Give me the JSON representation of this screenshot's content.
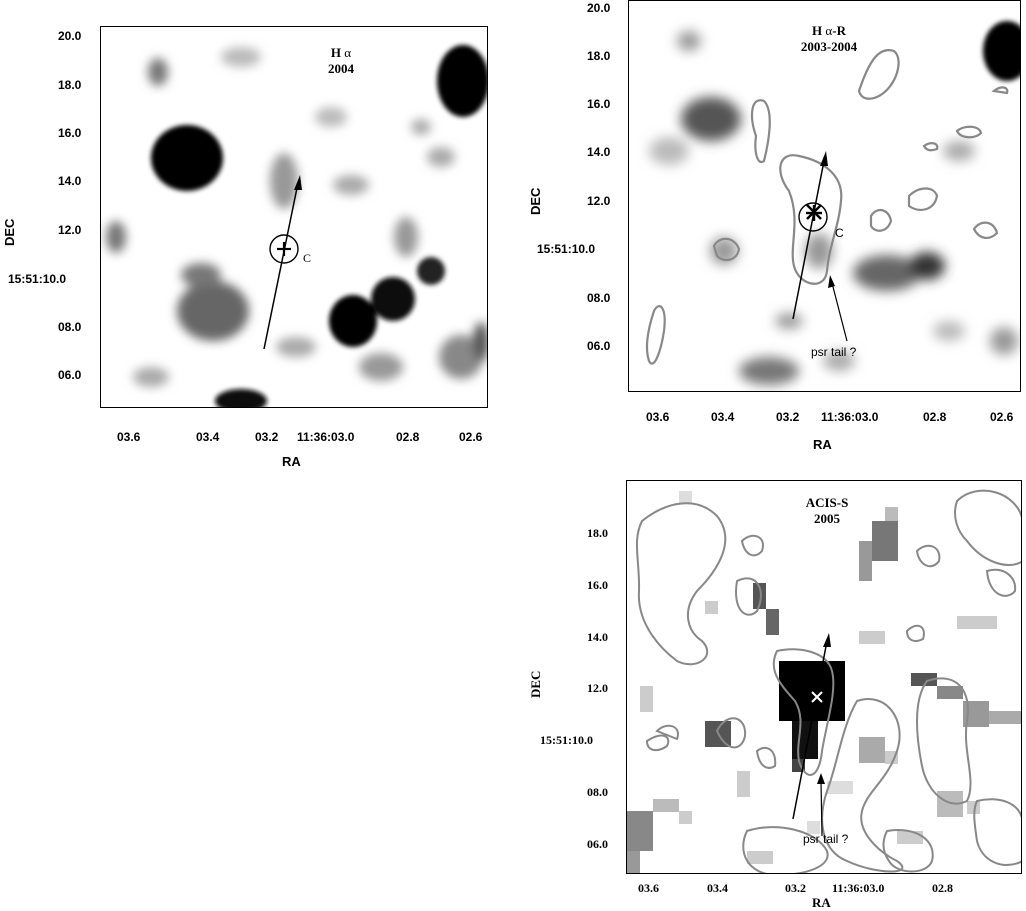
{
  "panels": {
    "halpha": {
      "title_line1": "H",
      "title_alpha": "α",
      "title_line2": "2004",
      "xlabel": "RA",
      "ylabel": "DEC",
      "yticks": [
        "20.0",
        "18.0",
        "16.0",
        "14.0",
        "12.0",
        "15:51:10.0",
        "08.0",
        "06.0"
      ],
      "xticks": [
        "03.6",
        "03.4",
        "03.2",
        "11:36:03.0",
        "02.8",
        "02.6"
      ],
      "source_label": "C"
    },
    "diff": {
      "title_line1": "H",
      "title_alpha": "α",
      "title_suffix": "-R",
      "title_line2": "2003-2004",
      "xlabel": "RA",
      "ylabel": "DEC",
      "yticks": [
        "20.0",
        "18.0",
        "16.0",
        "14.0",
        "12.0",
        "15:51:10.0",
        "08.0",
        "06.0"
      ],
      "xticks": [
        "03.6",
        "03.4",
        "03.2",
        "11:36:03.0",
        "02.8",
        "02.6"
      ],
      "source_label": "C",
      "tail_label": "psr tail ?"
    },
    "acis": {
      "title_line1": "ACIS-S",
      "title_line2": "2005",
      "xlabel": "RA",
      "ylabel": "DEC",
      "yticks": [
        "18.0",
        "16.0",
        "14.0",
        "12.0",
        "15:51:10.0",
        "08.0",
        "06.0"
      ],
      "xticks": [
        "03.6",
        "03.4",
        "03.2",
        "11:36:03.0",
        "02.8"
      ],
      "tail_label": "psr tail ?"
    }
  }
}
